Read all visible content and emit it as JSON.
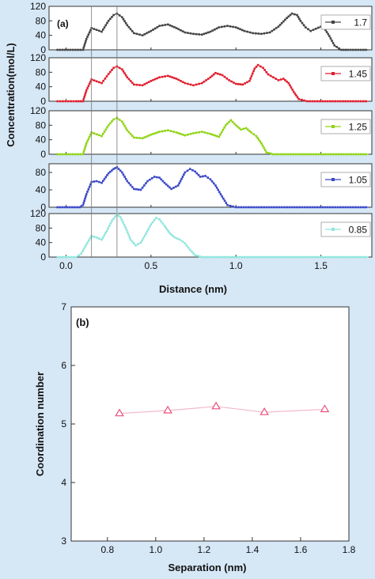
{
  "chart_data": [
    {
      "type": "scatter",
      "panel_label": "(a)",
      "ylabel": "Concentration(mol/L)",
      "xlabel": "Distance (nm)",
      "xlim": [
        -0.1,
        1.8
      ],
      "x_ticks": [
        0.0,
        0.5,
        1.0,
        1.5
      ],
      "x_tick_labels": [
        "0.0",
        "0.5",
        "1.0",
        "1.5"
      ],
      "reference_lines_x": [
        0.15,
        0.3
      ],
      "legend_position": "right",
      "subplots": [
        {
          "name": "1.7",
          "color": "#444444",
          "ylim": [
            0,
            120
          ],
          "y_ticks": [
            0,
            40,
            80,
            120
          ],
          "y_tick_labels": [
            "0",
            "40",
            "80",
            "120"
          ],
          "x": [
            -0.05,
            0.1,
            0.12,
            0.15,
            0.18,
            0.21,
            0.25,
            0.28,
            0.3,
            0.33,
            0.36,
            0.4,
            0.45,
            0.5,
            0.55,
            0.6,
            0.65,
            0.7,
            0.75,
            0.8,
            0.85,
            0.9,
            0.95,
            1.0,
            1.05,
            1.1,
            1.15,
            1.2,
            1.25,
            1.3,
            1.33,
            1.36,
            1.38,
            1.41,
            1.44,
            1.47,
            1.5,
            1.52,
            1.55,
            1.58,
            1.62,
            1.66,
            1.78
          ],
          "y": [
            0,
            0,
            30,
            60,
            55,
            50,
            80,
            96,
            100,
            90,
            68,
            46,
            40,
            52,
            66,
            70,
            60,
            48,
            44,
            42,
            50,
            62,
            66,
            62,
            52,
            46,
            44,
            48,
            64,
            88,
            100,
            96,
            80,
            62,
            52,
            58,
            64,
            60,
            38,
            12,
            0,
            0,
            0
          ]
        },
        {
          "name": "1.45",
          "color": "#e01e2d",
          "ylim": [
            0,
            120
          ],
          "y_ticks": [
            0,
            40,
            80,
            120
          ],
          "y_tick_labels": [
            "0",
            "40",
            "80",
            "120"
          ],
          "x": [
            -0.05,
            0.06,
            0.1,
            0.12,
            0.15,
            0.18,
            0.21,
            0.25,
            0.28,
            0.3,
            0.33,
            0.36,
            0.4,
            0.45,
            0.5,
            0.55,
            0.6,
            0.65,
            0.7,
            0.75,
            0.8,
            0.85,
            0.88,
            0.92,
            0.96,
            1.0,
            1.04,
            1.08,
            1.11,
            1.13,
            1.16,
            1.19,
            1.22,
            1.25,
            1.28,
            1.31,
            1.34,
            1.37,
            1.42,
            1.78
          ],
          "y": [
            0,
            0,
            0,
            30,
            60,
            55,
            50,
            75,
            92,
            96,
            88,
            66,
            46,
            44,
            56,
            66,
            70,
            62,
            50,
            44,
            50,
            66,
            78,
            72,
            58,
            48,
            46,
            56,
            90,
            100,
            92,
            74,
            66,
            58,
            62,
            50,
            26,
            6,
            0,
            0
          ]
        },
        {
          "name": "1.25",
          "color": "#8fd414",
          "ylim": [
            0,
            120
          ],
          "y_ticks": [
            0,
            40,
            80,
            120
          ],
          "y_tick_labels": [
            "0",
            "40",
            "80",
            "120"
          ],
          "x": [
            -0.05,
            0.1,
            0.12,
            0.15,
            0.18,
            0.21,
            0.25,
            0.28,
            0.3,
            0.33,
            0.36,
            0.4,
            0.45,
            0.5,
            0.55,
            0.6,
            0.65,
            0.7,
            0.75,
            0.8,
            0.85,
            0.9,
            0.94,
            0.97,
            1.0,
            1.03,
            1.06,
            1.09,
            1.12,
            1.15,
            1.18,
            1.22,
            1.78
          ],
          "y": [
            0,
            0,
            30,
            60,
            55,
            50,
            80,
            96,
            100,
            90,
            66,
            46,
            44,
            54,
            62,
            66,
            60,
            52,
            58,
            62,
            56,
            48,
            80,
            94,
            80,
            68,
            72,
            60,
            50,
            30,
            5,
            0,
            0
          ]
        },
        {
          "name": "1.05",
          "color": "#3a48c8",
          "ylim": [
            0,
            100
          ],
          "y_ticks": [
            0,
            40,
            80
          ],
          "y_tick_labels": [
            "0",
            "40",
            "80"
          ],
          "x": [
            -0.05,
            0.08,
            0.1,
            0.12,
            0.15,
            0.18,
            0.21,
            0.25,
            0.28,
            0.3,
            0.33,
            0.36,
            0.4,
            0.44,
            0.48,
            0.52,
            0.55,
            0.58,
            0.62,
            0.66,
            0.7,
            0.73,
            0.76,
            0.79,
            0.82,
            0.85,
            0.88,
            0.91,
            0.95,
            1.0,
            1.78
          ],
          "y": [
            0,
            0,
            5,
            30,
            58,
            60,
            56,
            78,
            88,
            92,
            80,
            60,
            42,
            40,
            60,
            70,
            68,
            56,
            42,
            50,
            80,
            88,
            82,
            70,
            72,
            64,
            50,
            30,
            5,
            0,
            0
          ]
        },
        {
          "name": "0.85",
          "color": "#8ee6dc",
          "ylim": [
            0,
            120
          ],
          "y_ticks": [
            0,
            40,
            80,
            120
          ],
          "y_tick_labels": [
            "0",
            "40",
            "80",
            "120"
          ],
          "x": [
            -0.05,
            0.06,
            0.09,
            0.12,
            0.15,
            0.18,
            0.21,
            0.24,
            0.27,
            0.3,
            0.32,
            0.35,
            0.38,
            0.41,
            0.44,
            0.47,
            0.5,
            0.53,
            0.55,
            0.58,
            0.61,
            0.64,
            0.67,
            0.7,
            0.73,
            0.76,
            0.8,
            1.78
          ],
          "y": [
            0,
            0,
            10,
            35,
            58,
            54,
            48,
            72,
            100,
            118,
            110,
            82,
            48,
            32,
            40,
            64,
            90,
            108,
            104,
            86,
            66,
            54,
            48,
            38,
            20,
            5,
            0,
            0
          ]
        }
      ]
    },
    {
      "type": "line",
      "panel_label": "(b)",
      "xlabel": "Separation (nm)",
      "ylabel": "Coordination number",
      "xlim": [
        0.65,
        1.8
      ],
      "ylim": [
        3,
        7
      ],
      "x_ticks": [
        0.8,
        1.0,
        1.2,
        1.4,
        1.6,
        1.8
      ],
      "x_tick_labels": [
        "0.8",
        "1.0",
        "1.2",
        "1.4",
        "1.6",
        "1.8"
      ],
      "y_ticks": [
        3,
        4,
        5,
        6,
        7
      ],
      "y_tick_labels": [
        "3",
        "4",
        "5",
        "6",
        "7"
      ],
      "marker": "triangle",
      "color": "#e8507c",
      "line_color": "#f2b8c8",
      "series": [
        {
          "x": [
            0.85,
            1.05,
            1.25,
            1.45,
            1.7
          ],
          "y": [
            5.18,
            5.23,
            5.3,
            5.2,
            5.25
          ]
        }
      ]
    }
  ]
}
